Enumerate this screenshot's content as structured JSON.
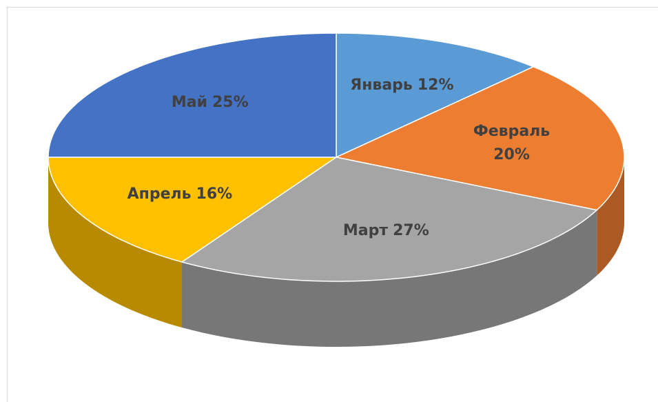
{
  "chart_data": {
    "type": "pie",
    "categories": [
      "Январь",
      "Февраль",
      "Март",
      "Апрель",
      "Май"
    ],
    "values": [
      12,
      20,
      27,
      16,
      25
    ],
    "value_labels": [
      "12%",
      "20%",
      "27%",
      "16%",
      "25%"
    ],
    "colors": [
      "#5b9bd5",
      "#ed7d31",
      "#a5a5a5",
      "#ffc000",
      "#4472c4"
    ],
    "style": "3d"
  }
}
